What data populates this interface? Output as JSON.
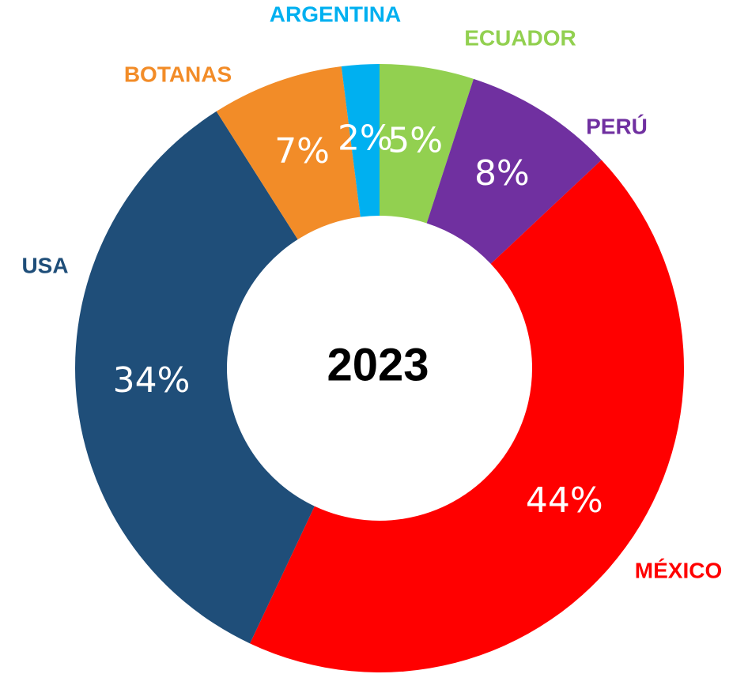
{
  "chart_data": {
    "type": "donut",
    "title": "2023",
    "categories": [
      "ECUADOR",
      "PERÚ",
      "MÉXICO",
      "USA",
      "BOTANAS",
      "ARGENTINA"
    ],
    "values": [
      5,
      8,
      44,
      34,
      7,
      2
    ],
    "value_labels": [
      "5%",
      "8%",
      "44%",
      "34%",
      "7%",
      "2%"
    ],
    "colors": [
      "#92d050",
      "#7030a0",
      "#ff0000",
      "#1f4e79",
      "#f28c28",
      "#00b0f0"
    ]
  }
}
